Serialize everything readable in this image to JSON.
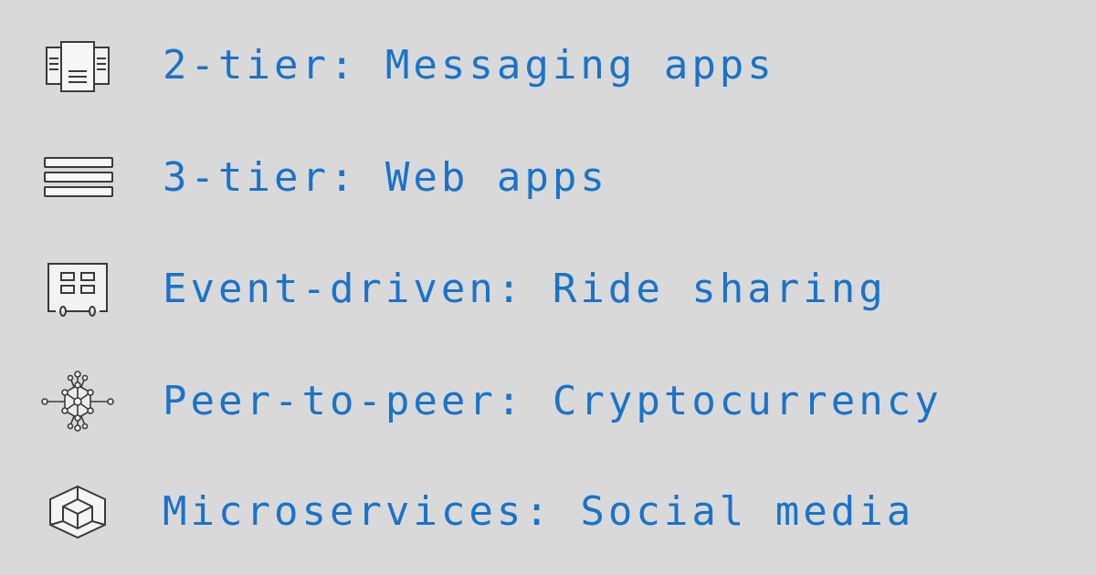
{
  "colors": {
    "background": "#d9d9d9",
    "text": "#1a73c9",
    "icon_stroke": "#3a3a3a"
  },
  "items": [
    {
      "icon": "document-pages-icon",
      "label": "2-tier: Messaging apps"
    },
    {
      "icon": "stacked-layers-icon",
      "label": "3-tier: Web apps"
    },
    {
      "icon": "event-dashboard-icon",
      "label": "Event-driven: Ride sharing"
    },
    {
      "icon": "network-nodes-icon",
      "label": "Peer-to-peer: Cryptocurrency"
    },
    {
      "icon": "hexagon-cube-icon",
      "label": "Microservices: Social media"
    }
  ]
}
